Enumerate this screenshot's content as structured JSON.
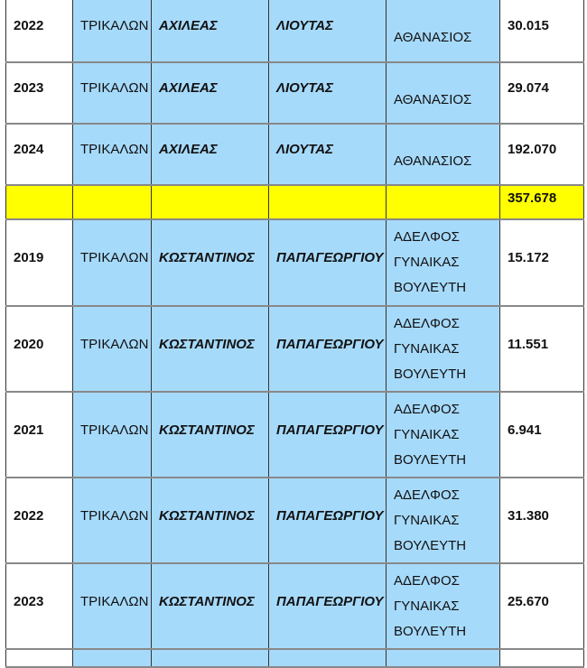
{
  "colors": {
    "cell_blue": "#a6dafb",
    "total_yellow": "#ffff00"
  },
  "rows": [
    {
      "year": "2022",
      "region": "ΤΡΙΚΑΛΩΝ",
      "first_name": "ΑΧΙΛΕΑΣ",
      "last_name": "ΛΙΟΥΤΑΣ",
      "relation": "ΑΘΑΝΑΣΙΟΣ",
      "amount": "30.015"
    },
    {
      "year": "2023",
      "region": "ΤΡΙΚΑΛΩΝ",
      "first_name": "ΑΧΙΛΕΑΣ",
      "last_name": "ΛΙΟΥΤΑΣ",
      "relation": "ΑΘΑΝΑΣΙΟΣ",
      "amount": "29.074"
    },
    {
      "year": "2024",
      "region": "ΤΡΙΚΑΛΩΝ",
      "first_name": "ΑΧΙΛΕΑΣ",
      "last_name": "ΛΙΟΥΤΑΣ",
      "relation": "ΑΘΑΝΑΣΙΟΣ",
      "amount": "192.070"
    },
    {
      "total": true,
      "year": "",
      "region": "",
      "first_name": "",
      "last_name": "",
      "relation": "",
      "amount": "357.678"
    },
    {
      "year": "2019",
      "region": "ΤΡΙΚΑΛΩΝ",
      "first_name": "ΚΩΣΤΑΝΤΙΝΟΣ",
      "last_name": "ΠΑΠΑΓΕΩΡΓΙΟΥ",
      "relation": "ΑΔΕΛΦΟΣ ΓΥΝΑΙΚΑΣ ΒΟΥΛΕΥΤΗ",
      "amount": "15.172"
    },
    {
      "year": "2020",
      "region": "ΤΡΙΚΑΛΩΝ",
      "first_name": "ΚΩΣΤΑΝΤΙΝΟΣ",
      "last_name": "ΠΑΠΑΓΕΩΡΓΙΟΥ",
      "relation": "ΑΔΕΛΦΟΣ ΓΥΝΑΙΚΑΣ ΒΟΥΛΕΥΤΗ",
      "amount": "11.551"
    },
    {
      "year": "2021",
      "region": "ΤΡΙΚΑΛΩΝ",
      "first_name": "ΚΩΣΤΑΝΤΙΝΟΣ",
      "last_name": "ΠΑΠΑΓΕΩΡΓΙΟΥ",
      "relation": "ΑΔΕΛΦΟΣ ΓΥΝΑΙΚΑΣ ΒΟΥΛΕΥΤΗ",
      "amount": "6.941"
    },
    {
      "year": "2022",
      "region": "ΤΡΙΚΑΛΩΝ",
      "first_name": "ΚΩΣΤΑΝΤΙΝΟΣ",
      "last_name": "ΠΑΠΑΓΕΩΡΓΙΟΥ",
      "relation": "ΑΔΕΛΦΟΣ ΓΥΝΑΙΚΑΣ ΒΟΥΛΕΥΤΗ",
      "amount": "31.380"
    },
    {
      "year": "2023",
      "region": "ΤΡΙΚΑΛΩΝ",
      "first_name": "ΚΩΣΤΑΝΤΙΝΟΣ",
      "last_name": "ΠΑΠΑΓΕΩΡΓΙΟΥ",
      "relation": "ΑΔΕΛΦΟΣ ΓΥΝΑΙΚΑΣ ΒΟΥΛΕΥΤΗ",
      "amount": "25.670"
    },
    {
      "year": "",
      "region": "",
      "first_name": "",
      "last_name": "",
      "relation": "",
      "amount": ""
    }
  ]
}
